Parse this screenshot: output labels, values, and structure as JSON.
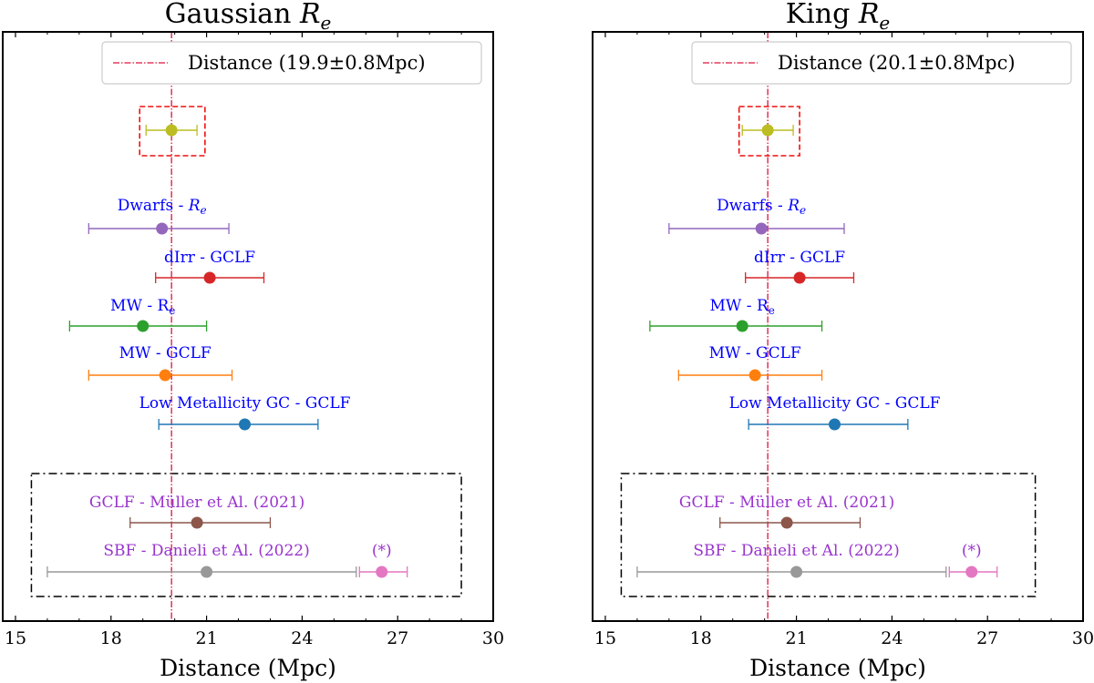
{
  "chart_data": [
    {
      "type": "scatter",
      "title_prefix": "Gaussian",
      "title_symbol": "R",
      "title_sub": "e",
      "xlabel": "Distance (Mpc)",
      "xlim": [
        14.6,
        30.0
      ],
      "xticks": [
        15,
        18,
        21,
        24,
        27,
        30
      ],
      "reference_line": {
        "x": 19.9,
        "label": "Distance (19.9±0.8Mpc)",
        "color": "#dc143c"
      },
      "highlight_box": {
        "x_range": [
          18.9,
          20.95
        ],
        "color": "#ee1111"
      },
      "group_box": {
        "x_range": [
          15.5,
          29.0
        ]
      },
      "points": [
        {
          "name": "Combined",
          "label": "",
          "x": 19.9,
          "xerr_low": 0.8,
          "xerr_high": 0.8,
          "color": "#bcbd22",
          "label_color": "#0000ff"
        },
        {
          "name": "Dwarfs - Re",
          "label": "Dwarfs - ",
          "label_sym": "R",
          "label_sub": "e",
          "label_italic": true,
          "x": 19.6,
          "xerr_low": 2.3,
          "xerr_high": 2.1,
          "color": "#9467bd",
          "label_color": "#0000ff"
        },
        {
          "name": "dIrr - GCLF",
          "label": "dIrr - GCLF",
          "x": 21.1,
          "xerr_low": 1.7,
          "xerr_high": 1.7,
          "color": "#d62728",
          "label_color": "#0000ff"
        },
        {
          "name": "MW - Re",
          "label": "MW - R",
          "label_sub": "e",
          "x": 19.0,
          "xerr_low": 2.3,
          "xerr_high": 2.0,
          "color": "#2ca02c",
          "label_color": "#0000ff"
        },
        {
          "name": "MW - GCLF",
          "label": "MW - GCLF",
          "x": 19.7,
          "xerr_low": 2.4,
          "xerr_high": 2.1,
          "color": "#ff7f0e",
          "label_color": "#0000ff"
        },
        {
          "name": "Low Metallicity GC - GCLF",
          "label": "Low Metallicity GC - GCLF",
          "x": 22.2,
          "xerr_low": 2.7,
          "xerr_high": 2.3,
          "color": "#1f77b4",
          "label_color": "#0000ff"
        },
        {
          "name": "GCLF - Müller et Al. (2021)",
          "label": "GCLF - Müller et Al. (2021)",
          "x": 20.7,
          "xerr_low": 2.1,
          "xerr_high": 2.3,
          "color": "#8c564b",
          "label_color": "#9933cc"
        },
        {
          "name": "SBF - Danieli et Al. (2022)",
          "label": "SBF - Danieli et Al. (2022)",
          "x": 21.0,
          "xerr_low": 5.0,
          "xerr_high": 4.7,
          "color": "#999999",
          "label_color": "#9933cc"
        },
        {
          "name": "(*)",
          "label": "(*)",
          "x": 26.5,
          "xerr_low": 0.7,
          "xerr_high": 0.8,
          "color": "#e377c2",
          "label_color": "#9933cc"
        }
      ]
    },
    {
      "type": "scatter",
      "title_prefix": "King",
      "title_symbol": "R",
      "title_sub": "e",
      "xlabel": "Distance (Mpc)",
      "xlim": [
        14.6,
        30.0
      ],
      "xticks": [
        15,
        18,
        21,
        24,
        27,
        30
      ],
      "reference_line": {
        "x": 20.1,
        "label": "Distance (20.1±0.8Mpc)",
        "color": "#dc143c"
      },
      "highlight_box": {
        "x_range": [
          19.2,
          21.1
        ],
        "color": "#ee1111"
      },
      "group_box": {
        "x_range": [
          15.5,
          28.5
        ]
      },
      "points": [
        {
          "name": "Combined",
          "label": "",
          "x": 20.1,
          "xerr_low": 0.8,
          "xerr_high": 0.8,
          "color": "#bcbd22",
          "label_color": "#0000ff"
        },
        {
          "name": "Dwarfs - Re",
          "label": "Dwarfs - ",
          "label_sym": "R",
          "label_sub": "e",
          "label_italic": true,
          "x": 19.9,
          "xerr_low": 2.9,
          "xerr_high": 2.6,
          "color": "#9467bd",
          "label_color": "#0000ff"
        },
        {
          "name": "dIrr - GCLF",
          "label": "dIrr - GCLF",
          "x": 21.1,
          "xerr_low": 1.7,
          "xerr_high": 1.7,
          "color": "#d62728",
          "label_color": "#0000ff"
        },
        {
          "name": "MW - Re",
          "label": "MW - R",
          "label_sub": "e",
          "x": 19.3,
          "xerr_low": 2.9,
          "xerr_high": 2.5,
          "color": "#2ca02c",
          "label_color": "#0000ff"
        },
        {
          "name": "MW - GCLF",
          "label": "MW - GCLF",
          "x": 19.7,
          "xerr_low": 2.4,
          "xerr_high": 2.1,
          "color": "#ff7f0e",
          "label_color": "#0000ff"
        },
        {
          "name": "Low Metallicity GC - GCLF",
          "label": "Low Metallicity GC - GCLF",
          "x": 22.2,
          "xerr_low": 2.7,
          "xerr_high": 2.3,
          "color": "#1f77b4",
          "label_color": "#0000ff"
        },
        {
          "name": "GCLF - Müller et Al. (2021)",
          "label": "GCLF - Müller et Al. (2021)",
          "x": 20.7,
          "xerr_low": 2.1,
          "xerr_high": 2.3,
          "color": "#8c564b",
          "label_color": "#9933cc"
        },
        {
          "name": "SBF - Danieli et Al. (2022)",
          "label": "SBF - Danieli et Al. (2022)",
          "x": 21.0,
          "xerr_low": 5.0,
          "xerr_high": 4.7,
          "color": "#999999",
          "label_color": "#9933cc"
        },
        {
          "name": "(*)",
          "label": "(*)",
          "x": 26.5,
          "xerr_low": 0.7,
          "xerr_high": 0.8,
          "color": "#e377c2",
          "label_color": "#9933cc"
        }
      ]
    }
  ]
}
